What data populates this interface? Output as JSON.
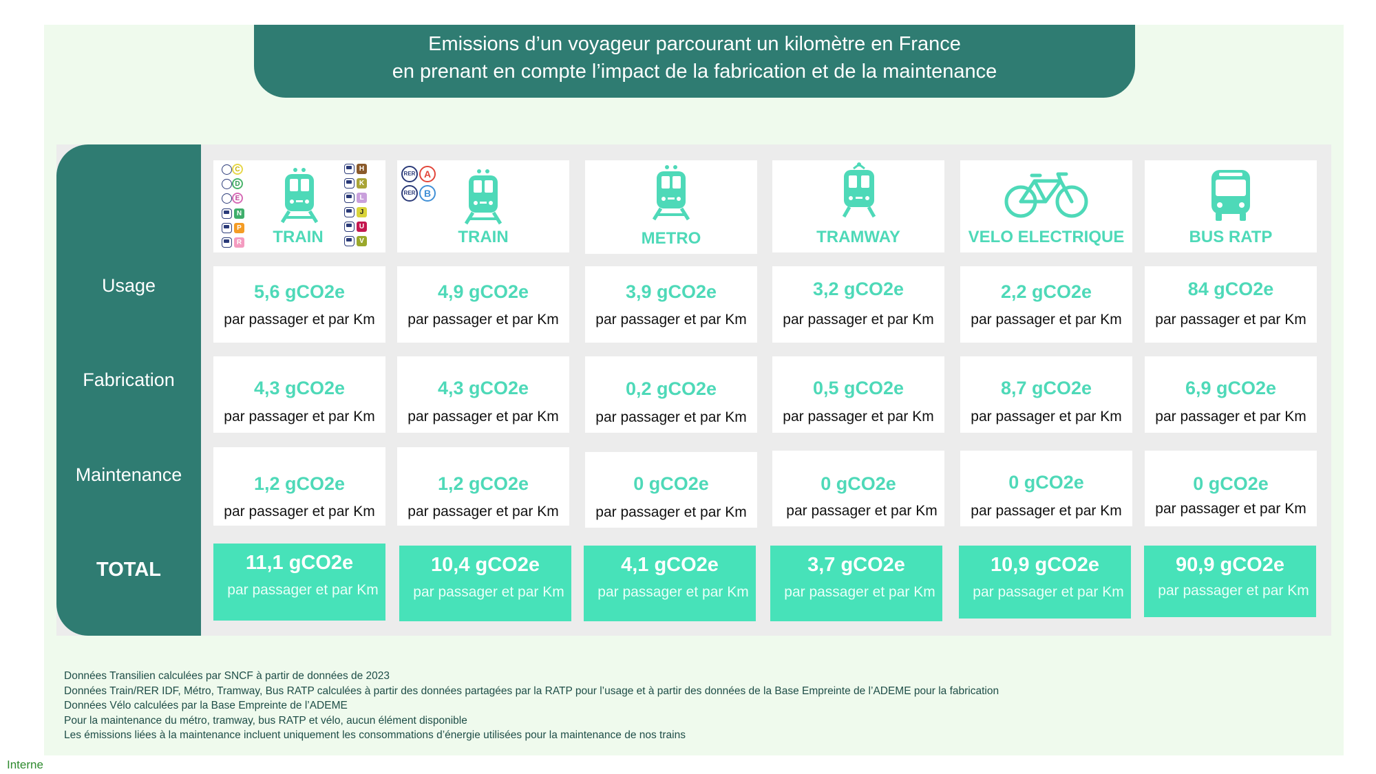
{
  "title": {
    "line1": "Emissions d’un voyageur parcourant un kilomètre en France",
    "line2": "en prenant en compte l’impact de la fabrication et de la maintenance"
  },
  "rows": {
    "usage": "Usage",
    "fabrication": "Fabrication",
    "maintenance": "Maintenance",
    "total": "TOTAL"
  },
  "unit": "par passager et par Km",
  "modes": [
    {
      "label": "TRAIN",
      "icon": "train-icon",
      "usage": "5,6 gCO2e",
      "fabrication": "4,3 gCO2e",
      "maintenance": "1,2 gCO2e",
      "total": "11,1 gCO2e"
    },
    {
      "label": "TRAIN",
      "icon": "train-icon",
      "usage": "4,9 gCO2e",
      "fabrication": "4,3 gCO2e",
      "maintenance": "1,2 gCO2e",
      "total": "10,4 gCO2e"
    },
    {
      "label": "METRO",
      "icon": "metro-icon",
      "usage": "3,9 gCO2e",
      "fabrication": "0,2 gCO2e",
      "maintenance": "0 gCO2e",
      "total": "4,1 gCO2e"
    },
    {
      "label": "TRAMWAY",
      "icon": "tramway-icon",
      "usage": "3,2 gCO2e",
      "fabrication": "0,5 gCO2e",
      "maintenance": "0 gCO2e",
      "total": "3,7 gCO2e"
    },
    {
      "label": "VELO ELECTRIQUE",
      "icon": "bicycle-icon",
      "usage": "2,2 gCO2e",
      "fabrication": "8,7 gCO2e",
      "maintenance": "0 gCO2e",
      "total": "10,9 gCO2e"
    },
    {
      "label": "BUS RATP",
      "icon": "bus-icon",
      "usage": "84 gCO2e",
      "fabrication": "6,9 gCO2e",
      "maintenance": "0 gCO2e",
      "total": "90,9 gCO2e"
    }
  ],
  "line_badges": {
    "rer_prefix": "RER",
    "rer_left": [
      "C",
      "D",
      "E"
    ],
    "train_left": [
      "N",
      "P",
      "R"
    ],
    "train_right": [
      "H",
      "K",
      "L",
      "J",
      "U",
      "V"
    ],
    "rer_ab": [
      "A",
      "B"
    ]
  },
  "notes": [
    "Données Transilien calculées par SNCF à partir de données de 2023",
    "Données Train/RER IDF, Métro, Tramway, Bus RATP calculées à partir des données partagées par la RATP pour l’usage et à partir des données de la Base Empreinte de l’ADEME pour la fabrication",
    "Données Vélo calculées par la Base Empreinte de l’ADEME",
    "Pour la maintenance du métro, tramway, bus RATP et vélo, aucun élément disponible",
    "Les émissions liées à la maintenance incluent uniquement les consommations d’énergie utilisées pour la maintenance de nos trains"
  ],
  "footer": "Interne",
  "colors": {
    "dark_teal": "#2f7c72",
    "accent": "#4ed9b8",
    "total_bg": "#47e2b9",
    "panel_bg": "#effaed"
  }
}
